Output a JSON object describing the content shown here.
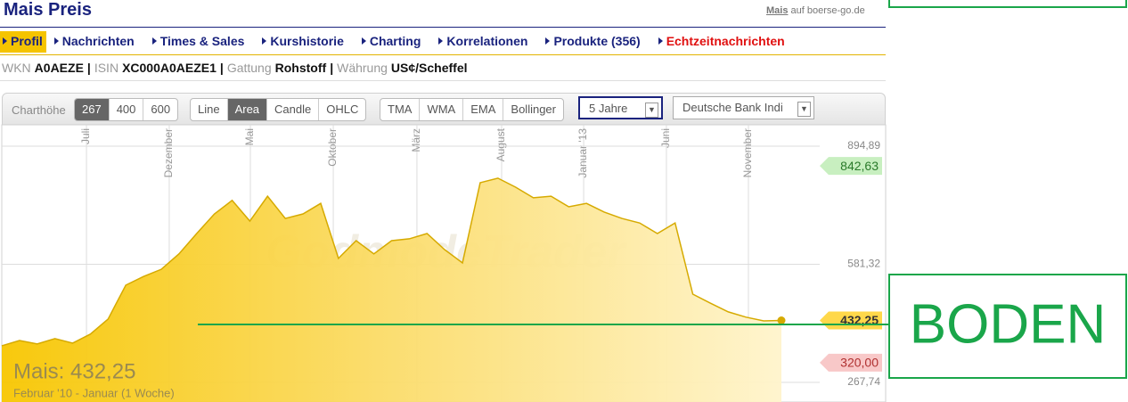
{
  "header": {
    "title": "Mais Preis",
    "link_prefix": "Mais",
    "link_rest": "auf boerse-go.de"
  },
  "nav": [
    "Profil",
    "Nachrichten",
    "Times & Sales",
    "Kurshistorie",
    "Charting",
    "Korrelationen",
    "Produkte (356)",
    "Echtzeitnachrichten"
  ],
  "info": [
    [
      "WKN",
      "A0AEZE"
    ],
    [
      "ISIN",
      "XC000A0AEZE1"
    ],
    [
      "Gattung",
      "Rohstoff"
    ],
    [
      "Währung",
      "US¢/Scheffel"
    ]
  ],
  "toolbar": {
    "height_label": "Charthöhe",
    "heights": [
      "267",
      "400",
      "600"
    ],
    "types": [
      "Line",
      "Area",
      "Candle",
      "OHLC"
    ],
    "indicators": [
      "TMA",
      "WMA",
      "EMA",
      "Bollinger"
    ],
    "period": "5 Jahre",
    "benchmark": "Deutsche Bank Indi"
  },
  "chart_data": {
    "type": "area",
    "watermark": "GodmodeTrader",
    "legend_title": "Mais: 432,25",
    "subtitle": "Februar '10 - Januar (1 Woche)",
    "color": "#d6aa00",
    "grid": true,
    "values": [
      365,
      379,
      370,
      384,
      372,
      396,
      436,
      526,
      549,
      568,
      609,
      663,
      715,
      751,
      696,
      762,
      703,
      715,
      743,
      597,
      644,
      609,
      644,
      649,
      663,
      620,
      585,
      798,
      810,
      786,
      758,
      762,
      734,
      743,
      720,
      703,
      691,
      663,
      691,
      502,
      478,
      455,
      441,
      431,
      432.25
    ],
    "ylim": [
      215.7,
      951.7
    ],
    "yticks": [
      {
        "value": 894.89,
        "label": "894,89"
      },
      {
        "value": 581.32,
        "label": "581,32"
      },
      {
        "value": 267.74,
        "label": "267,74"
      }
    ],
    "xticks": [
      {
        "value": 4.78,
        "label": "Juli"
      },
      {
        "value": 9.45,
        "label": "Dezember"
      },
      {
        "value": 14.03,
        "label": "Mai"
      },
      {
        "value": 18.71,
        "label": "Oktober"
      },
      {
        "value": 23.43,
        "label": "März"
      },
      {
        "value": 28.21,
        "label": "August"
      },
      {
        "value": 32.84,
        "label": "Januar '13"
      },
      {
        "value": 37.51,
        "label": "Juni"
      },
      {
        "value": 42.14,
        "label": "November"
      }
    ],
    "markers": [
      {
        "value": 842.63,
        "label": "842,63",
        "color": "#c8efc0",
        "text_color": "#2a7a2a"
      },
      {
        "value": 432.25,
        "label": "432,25",
        "color": "#ffd84a",
        "text_color": "#333333"
      },
      {
        "value": 320.0,
        "label": "320,00",
        "color": "#f8c8c8",
        "text_color": "#b03030"
      }
    ]
  },
  "annotation": {
    "text": "BODEN",
    "color": "#1aa64a"
  }
}
